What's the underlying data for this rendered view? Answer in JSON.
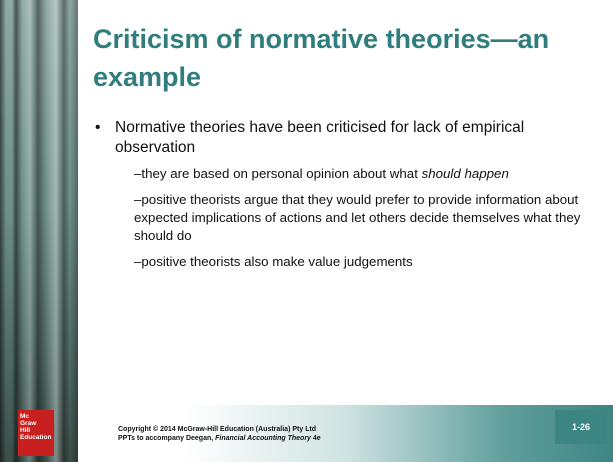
{
  "slide": {
    "title": "Criticism of normative theories—an example",
    "bullet": "Normative theories have been criticised for lack of empirical observation",
    "sub_bullets": [
      [
        "they are based on personal opinion about what ",
        "should happen"
      ],
      [
        "positive theorists argue that they would prefer to provide information about expected implications of actions and let others decide themselves what they should do"
      ],
      [
        "positive theorists also make value judgements"
      ]
    ],
    "logo": [
      "Mc",
      "Graw",
      "Hill",
      "Education"
    ],
    "footer": {
      "line1": "Copyright © 2014 McGraw-Hill Education (Australia) Pty Ltd",
      "line2": [
        "PPTs to accompany Deegan, ",
        "Financial Accounting Theory",
        " 4e"
      ]
    },
    "page_number": "1-26"
  }
}
